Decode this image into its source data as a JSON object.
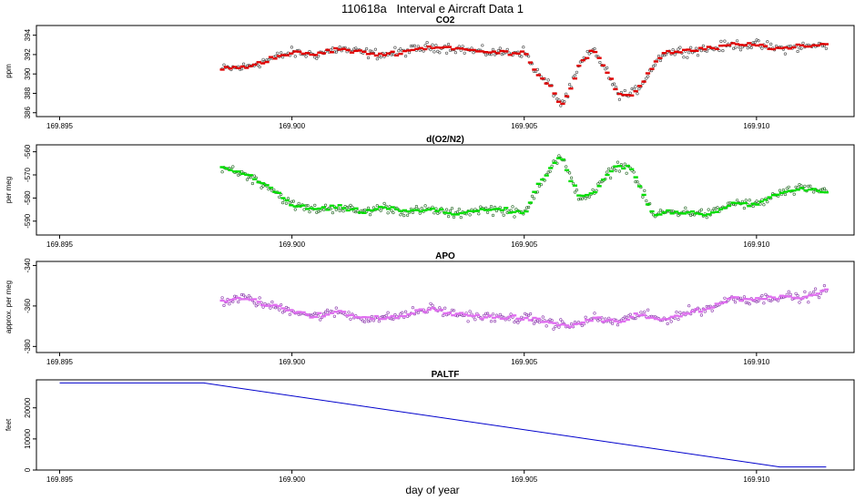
{
  "page": {
    "title": "110618a   Interval e Aircraft Data 1",
    "xlabel": "day of year"
  },
  "chart_data": [
    {
      "type": "scatter",
      "title": "CO2",
      "ylabel": "ppm",
      "color": "#e00000",
      "xlim": [
        169.8945,
        169.9121
      ],
      "ylim": [
        385.6,
        395.0
      ],
      "xticks": [
        169.895,
        169.9,
        169.905,
        169.91
      ],
      "xtick_labels": [
        "169.895",
        "169.900",
        "169.905",
        "169.910"
      ],
      "yticks": [
        386,
        388,
        390,
        392,
        394
      ],
      "ytick_labels": [
        "386",
        "388",
        "390",
        "392",
        "394"
      ],
      "x_range_data": [
        169.8985,
        169.9115
      ],
      "series": [
        {
          "x": [
            169.8985,
            169.899,
            169.8995,
            169.9,
            169.9005,
            169.901,
            169.9015,
            169.902,
            169.9025,
            169.903,
            169.9035,
            169.904,
            169.9045,
            169.905,
            169.9053,
            169.9056,
            169.9058,
            169.906,
            169.9062,
            169.9065,
            169.9068,
            169.907,
            169.9073,
            169.9075,
            169.9078,
            169.908,
            169.9085,
            169.909,
            169.9095,
            169.91,
            169.9105,
            169.911,
            169.9115
          ],
          "y": [
            390.5,
            390.7,
            391.5,
            392.2,
            392.0,
            392.6,
            392.2,
            392.0,
            392.4,
            392.8,
            392.7,
            392.3,
            392.2,
            392.3,
            390.0,
            388.5,
            386.8,
            388.5,
            391.0,
            392.5,
            390.0,
            388.0,
            387.8,
            388.8,
            391.0,
            392.2,
            392.4,
            392.6,
            393.0,
            393.0,
            392.6,
            392.8,
            393.0
          ]
        }
      ]
    },
    {
      "type": "scatter",
      "title": "d(O2/N2)",
      "ylabel": "per meg",
      "color": "#00dd00",
      "xlim": [
        169.8945,
        169.9121
      ],
      "ylim": [
        -596,
        -557
      ],
      "xticks": [
        169.895,
        169.9,
        169.905,
        169.91
      ],
      "xtick_labels": [
        "169.895",
        "169.900",
        "169.905",
        "169.910"
      ],
      "yticks": [
        -560,
        -570,
        -580,
        -590
      ],
      "ytick_labels": [
        "-560",
        "-570",
        "-580",
        "-590"
      ],
      "x_range_data": [
        169.8985,
        169.9115
      ],
      "series": [
        {
          "x": [
            169.8985,
            169.899,
            169.8995,
            169.9,
            169.9005,
            169.901,
            169.9015,
            169.902,
            169.9025,
            169.903,
            169.9035,
            169.904,
            169.9045,
            169.905,
            169.9053,
            169.9056,
            169.9058,
            169.906,
            169.9062,
            169.9065,
            169.9068,
            169.907,
            169.9073,
            169.9075,
            169.9078,
            169.908,
            169.9085,
            169.909,
            169.9095,
            169.91,
            169.9105,
            169.911,
            169.9115
          ],
          "y": [
            -566,
            -570,
            -575,
            -583,
            -585,
            -584,
            -586,
            -584,
            -586,
            -585,
            -587,
            -585,
            -585,
            -587,
            -575,
            -566,
            -562,
            -572,
            -580,
            -578,
            -570,
            -566,
            -567,
            -576,
            -588,
            -586,
            -586,
            -587,
            -582,
            -583,
            -578,
            -576,
            -577
          ]
        }
      ]
    },
    {
      "type": "scatter",
      "title": "APO",
      "ylabel": "approx. per meg",
      "color": "#e070f0",
      "xlim": [
        169.8945,
        169.9121
      ],
      "ylim": [
        -383,
        -338
      ],
      "xticks": [
        169.895,
        169.9,
        169.905,
        169.91
      ],
      "xtick_labels": [
        "169.895",
        "169.900",
        "169.905",
        "169.910"
      ],
      "yticks": [
        -340,
        -360,
        -380
      ],
      "ytick_labels": [
        "-340",
        "-360",
        "-380"
      ],
      "x_range_data": [
        169.8985,
        169.9115
      ],
      "series": [
        {
          "x": [
            169.8985,
            169.899,
            169.8995,
            169.9,
            169.9005,
            169.901,
            169.9015,
            169.902,
            169.9025,
            169.903,
            169.9035,
            169.904,
            169.9045,
            169.905,
            169.9055,
            169.906,
            169.9065,
            169.907,
            169.9075,
            169.908,
            169.9085,
            169.909,
            169.9095,
            169.91,
            169.9105,
            169.911,
            169.9115
          ],
          "y": [
            -358,
            -356,
            -360,
            -362,
            -365,
            -363,
            -366,
            -366,
            -364,
            -361,
            -364,
            -365,
            -366,
            -366,
            -368,
            -370,
            -366,
            -368,
            -364,
            -367,
            -363,
            -361,
            -356,
            -357,
            -355,
            -356,
            -352
          ]
        }
      ]
    },
    {
      "type": "line",
      "title": "PALTF",
      "ylabel": "feet",
      "color": "#0000cc",
      "xlim": [
        169.8945,
        169.9121
      ],
      "ylim": [
        0,
        29000
      ],
      "xticks": [
        169.895,
        169.9,
        169.905,
        169.91
      ],
      "xtick_labels": [
        "169.895",
        "169.900",
        "169.905",
        "169.910"
      ],
      "yticks": [
        0,
        10000,
        20000
      ],
      "ytick_labels": [
        "0",
        "10000",
        "20000"
      ],
      "series": [
        {
          "x": [
            169.895,
            169.8981,
            169.9105,
            169.9115
          ],
          "y": [
            28000,
            28000,
            1000,
            1000
          ]
        }
      ]
    }
  ]
}
